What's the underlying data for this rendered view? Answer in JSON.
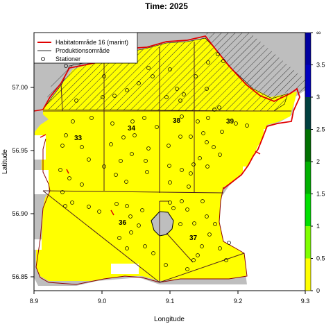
{
  "title": "Time: 2025",
  "axes": {
    "xlabel": "Longitude",
    "ylabel": "Latitude",
    "xticks": [
      "8.9",
      "9.0",
      "9.1",
      "9.2",
      "9.3"
    ],
    "yticks": [
      "56.85",
      "56.90",
      "56.95",
      "57.00"
    ]
  },
  "legend": {
    "items": [
      {
        "label": "Habitatområde 16 (marint)",
        "color": "#e00000",
        "kind": "line"
      },
      {
        "label": "Produktionsområde",
        "color": "#555555",
        "kind": "line"
      },
      {
        "label": "Stationer",
        "color": "#000000",
        "kind": "circle"
      }
    ]
  },
  "areas": [
    {
      "label": "33"
    },
    {
      "label": "34"
    },
    {
      "label": "38"
    },
    {
      "label": "39"
    },
    {
      "label": "36"
    },
    {
      "label": "37"
    }
  ],
  "colorbar": {
    "labels": [
      "0",
      "0.5",
      "1",
      "1.5",
      "2",
      "2.5",
      "3",
      "3.5",
      "∞"
    ],
    "colors": [
      "#ffff00",
      "#7fff00",
      "#00e000",
      "#00b000",
      "#007000",
      "#004040",
      "#0000c0",
      "#0000a0",
      "#000080"
    ]
  },
  "colors": {
    "land": "#bebebe",
    "water": "#ffff00",
    "habitat_line": "#e00000",
    "boundary": "#8b0000"
  }
}
